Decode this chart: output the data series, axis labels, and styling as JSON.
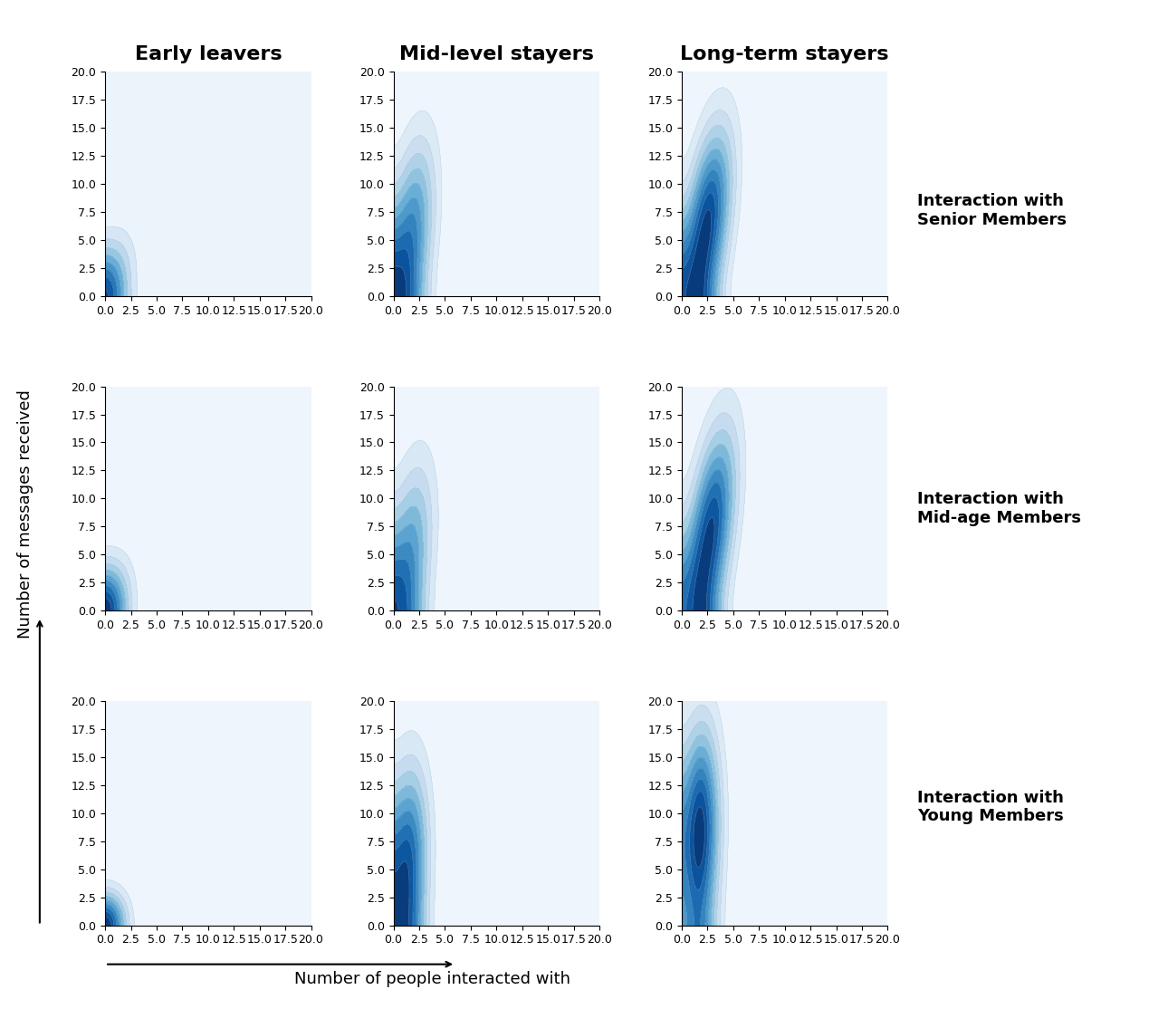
{
  "col_titles": [
    "Early leavers",
    "Mid-level stayers",
    "Long-term stayers"
  ],
  "row_labels": [
    "Interaction with\nSenior Members",
    "Interaction with\nMid-age Members",
    "Interaction with\nYoung Members"
  ],
  "xlabel": "Number of people interacted with",
  "ylabel": "Number of messages received",
  "xlim": [
    0,
    20
  ],
  "ylim": [
    0,
    20
  ],
  "xticks": [
    0.0,
    2.5,
    5.0,
    7.5,
    10.0,
    12.5,
    15.0,
    17.5,
    20.0
  ],
  "yticks": [
    0.0,
    2.5,
    5.0,
    7.5,
    10.0,
    12.5,
    15.0,
    17.5,
    20.0
  ],
  "figsize": [
    12.9,
    11.35
  ],
  "dpi": 100,
  "kde_params": {
    "early_senior": {
      "mx": 0.9,
      "sx": 0.65,
      "my": 1.8,
      "sy": 2.5,
      "r": 0.55,
      "bw": 1.2
    },
    "mid_senior": {
      "mx": 1.8,
      "sx": 0.85,
      "my": 5.5,
      "sy": 5.5,
      "r": 0.62,
      "bw": 1.2
    },
    "long_senior": {
      "mx": 2.5,
      "sx": 1.0,
      "my": 6.5,
      "sy": 5.5,
      "r": 0.7,
      "bw": 1.2
    },
    "early_mid": {
      "mx": 0.8,
      "sx": 0.55,
      "my": 1.4,
      "sy": 2.2,
      "r": 0.5,
      "bw": 1.2
    },
    "mid_mid": {
      "mx": 1.7,
      "sx": 0.85,
      "my": 5.0,
      "sy": 5.5,
      "r": 0.6,
      "bw": 1.2
    },
    "long_mid": {
      "mx": 2.8,
      "sx": 1.1,
      "my": 7.0,
      "sy": 6.0,
      "r": 0.72,
      "bw": 1.2
    },
    "early_young": {
      "mx": 0.5,
      "sx": 0.35,
      "my": 0.9,
      "sy": 1.2,
      "r": 0.45,
      "bw": 1.2
    },
    "mid_young": {
      "mx": 1.5,
      "sx": 0.45,
      "my": 6.0,
      "sy": 5.5,
      "r": 0.35,
      "bw": 1.2
    },
    "long_young": {
      "mx": 1.8,
      "sx": 0.38,
      "my": 8.5,
      "sy": 6.0,
      "r": 0.28,
      "bw": 1.2
    }
  },
  "contour_levels": 10,
  "cmap": "Blues",
  "title_fontsize": 16,
  "label_fontsize": 13,
  "tick_fontsize": 9,
  "row_label_fontsize": 13,
  "grid_color": "#d0d0d0",
  "keys": [
    [
      "early_senior",
      "mid_senior",
      "long_senior"
    ],
    [
      "early_mid",
      "mid_mid",
      "long_mid"
    ],
    [
      "early_young",
      "mid_young",
      "long_young"
    ]
  ]
}
